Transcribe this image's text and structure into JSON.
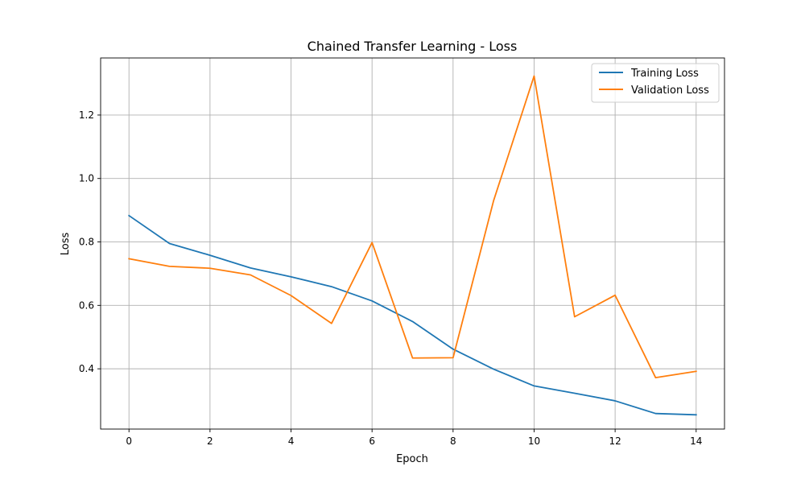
{
  "chart_data": {
    "type": "line",
    "title": "Chained Transfer Learning - Loss",
    "xlabel": "Epoch",
    "ylabel": "Loss",
    "xlim": [
      -0.7,
      14.7
    ],
    "ylim": [
      0.21,
      1.38
    ],
    "xticks": [
      0,
      2,
      4,
      6,
      8,
      10,
      12,
      14
    ],
    "yticks": [
      0.4,
      0.6,
      0.8,
      1.0,
      1.2
    ],
    "ytick_labels": [
      "0.4",
      "0.6",
      "0.8",
      "1.0",
      "1.2"
    ],
    "grid": true,
    "legend_position": "top-right",
    "x": [
      0,
      1,
      2,
      3,
      4,
      5,
      6,
      7,
      8,
      9,
      10,
      11,
      12,
      13,
      14
    ],
    "series": [
      {
        "name": "Training Loss",
        "color": "#1f77b4",
        "values": [
          0.883,
          0.795,
          0.758,
          0.718,
          0.69,
          0.659,
          0.614,
          0.549,
          0.462,
          0.399,
          0.346,
          0.323,
          0.299,
          0.259,
          0.255
        ]
      },
      {
        "name": "Validation Loss",
        "color": "#ff7f0e",
        "values": [
          0.747,
          0.723,
          0.717,
          0.696,
          0.631,
          0.543,
          0.798,
          0.434,
          0.435,
          0.93,
          1.323,
          0.564,
          0.632,
          0.372,
          0.392
        ]
      }
    ]
  }
}
